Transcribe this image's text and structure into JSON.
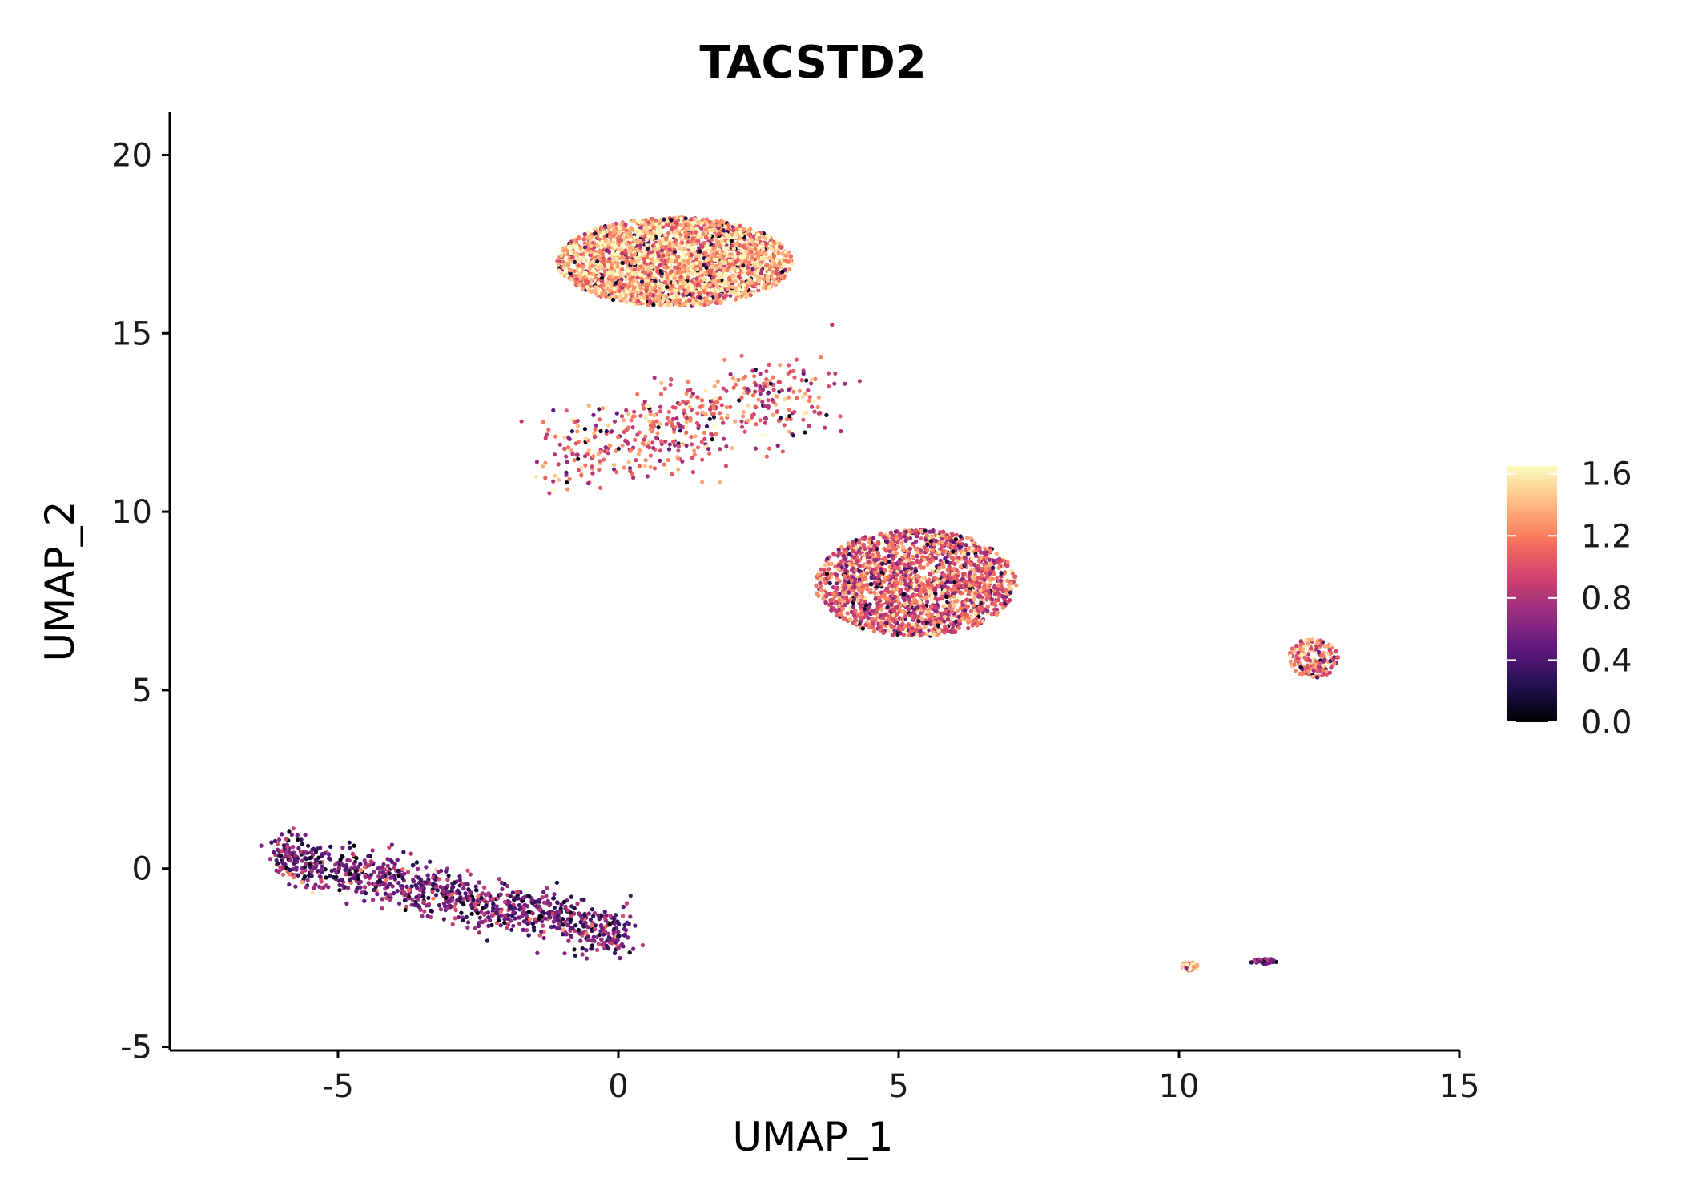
{
  "chart_data": {
    "type": "scatter",
    "title": "TACSTD2",
    "xlabel": "UMAP_1",
    "ylabel": "UMAP_2",
    "xlim": [
      -8,
      15
    ],
    "ylim": [
      -5.1,
      21.2
    ],
    "x_ticks": [
      -5,
      0,
      5,
      10,
      15
    ],
    "y_ticks": [
      -5,
      0,
      5,
      10,
      15,
      20
    ],
    "grid": false,
    "legend": {
      "placement": "right",
      "type": "colorbar",
      "ticks": [
        "0.0",
        "0.4",
        "0.8",
        "1.2",
        "1.6"
      ],
      "tick_values": [
        0.0,
        0.4,
        0.8,
        1.2,
        1.6
      ],
      "min": 0.0,
      "max": 1.65
    },
    "colormap": [
      "#000004",
      "#221150",
      "#5f187f",
      "#982d80",
      "#d3436e",
      "#f8765c",
      "#febb81",
      "#fcfdbf"
    ],
    "clusters": [
      {
        "center": [
          1.0,
          17.0
        ],
        "spread": [
          4.2,
          2.5
        ],
        "mean_expression": 1.35,
        "approx_cells": 3600
      },
      {
        "center": [
          5.3,
          8.0
        ],
        "spread": [
          3.6,
          3.0
        ],
        "mean_expression": 1.05,
        "approx_cells": 2900
      },
      {
        "center": [
          1.2,
          13.0
        ],
        "spread": [
          2.0,
          1.4
        ],
        "mean_expression": 1.05,
        "approx_cells": 500
      },
      {
        "center": [
          -2.9,
          -0.7
        ],
        "spread": [
          3.4,
          0.6
        ],
        "mean_expression": 0.55,
        "approx_cells": 1500
      },
      {
        "center": [
          12.4,
          5.9
        ],
        "spread": [
          0.9,
          1.1
        ],
        "mean_expression": 1.15,
        "approx_cells": 180
      },
      {
        "center": [
          10.2,
          -2.75
        ],
        "spread": [
          0.3,
          0.25
        ],
        "mean_expression": 1.3,
        "approx_cells": 50
      },
      {
        "center": [
          11.5,
          -2.6
        ],
        "spread": [
          0.5,
          0.15
        ],
        "mean_expression": 0.6,
        "approx_cells": 40
      }
    ]
  }
}
